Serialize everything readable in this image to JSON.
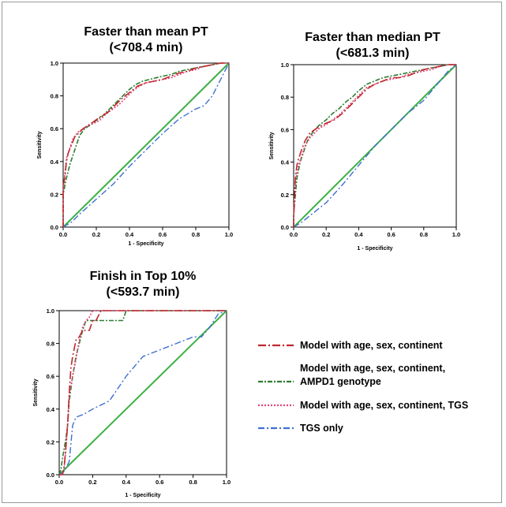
{
  "legend": {
    "entries": [
      {
        "lines": [
          "Model with age, sex, continent"
        ],
        "color": "#c0272d",
        "dash": "10 3 2 3"
      },
      {
        "lines": [
          "Model with age, sex, continent,",
          "AMPD1 genotype"
        ],
        "color": "#2e7d32",
        "dash": "6 2 2 2"
      },
      {
        "lines": [
          "Model with age, sex, continent, TGS"
        ],
        "color": "#e0457b",
        "dash": "2 2"
      },
      {
        "lines": [
          "TGS only"
        ],
        "color": "#3f6fd1",
        "dash": "8 3 2 3"
      }
    ]
  },
  "chart_data": [
    {
      "type": "line",
      "title": [
        "Faster than mean PT",
        "(<708.4 min)"
      ],
      "xlabel": "1 - Specificity",
      "ylabel": "Sensitivity",
      "xlim": [
        0,
        1
      ],
      "ylim": [
        0,
        1
      ],
      "ticks": [
        "0.0",
        "0.2",
        "0.4",
        "0.6",
        "0.8",
        "1.0"
      ],
      "series": [
        {
          "key": "m1",
          "x": [
            0,
            0,
            0.01,
            0.02,
            0.03,
            0.05,
            0.07,
            0.1,
            0.12,
            0.15,
            0.18,
            0.22,
            0.27,
            0.3,
            0.35,
            0.4,
            0.45,
            0.5,
            0.55,
            0.6,
            0.65,
            0.7,
            0.75,
            0.8,
            0.85,
            0.9,
            0.95,
            1.0
          ],
          "y": [
            0,
            0.25,
            0.3,
            0.4,
            0.45,
            0.5,
            0.55,
            0.58,
            0.6,
            0.62,
            0.64,
            0.67,
            0.7,
            0.73,
            0.78,
            0.82,
            0.86,
            0.88,
            0.89,
            0.9,
            0.92,
            0.94,
            0.95,
            0.97,
            0.98,
            0.99,
            1.0,
            1.0
          ]
        },
        {
          "key": "m2",
          "x": [
            0,
            0,
            0.02,
            0.04,
            0.06,
            0.08,
            0.1,
            0.13,
            0.16,
            0.2,
            0.24,
            0.28,
            0.32,
            0.36,
            0.4,
            0.44,
            0.48,
            0.52,
            0.56,
            0.6,
            0.65,
            0.7,
            0.75,
            0.8,
            0.85,
            0.9,
            0.95,
            1.0
          ],
          "y": [
            0,
            0.2,
            0.3,
            0.38,
            0.44,
            0.5,
            0.56,
            0.6,
            0.62,
            0.65,
            0.68,
            0.72,
            0.76,
            0.8,
            0.84,
            0.87,
            0.89,
            0.9,
            0.91,
            0.92,
            0.93,
            0.95,
            0.96,
            0.97,
            0.98,
            0.99,
            1.0,
            1.0
          ]
        },
        {
          "key": "m3",
          "x": [
            0,
            0,
            0.01,
            0.02,
            0.04,
            0.06,
            0.09,
            0.12,
            0.15,
            0.18,
            0.22,
            0.26,
            0.3,
            0.34,
            0.38,
            0.42,
            0.46,
            0.5,
            0.55,
            0.6,
            0.65,
            0.7,
            0.75,
            0.8,
            0.85,
            0.9,
            0.95,
            1.0
          ],
          "y": [
            0,
            0.22,
            0.32,
            0.42,
            0.48,
            0.54,
            0.58,
            0.6,
            0.62,
            0.63,
            0.65,
            0.69,
            0.72,
            0.75,
            0.79,
            0.83,
            0.86,
            0.88,
            0.89,
            0.9,
            0.91,
            0.93,
            0.95,
            0.96,
            0.98,
            0.99,
            1.0,
            1.0
          ]
        },
        {
          "key": "tgs",
          "x": [
            0,
            0.05,
            0.1,
            0.2,
            0.3,
            0.4,
            0.5,
            0.6,
            0.7,
            0.8,
            0.85,
            0.9,
            0.95,
            1.0
          ],
          "y": [
            0,
            0.03,
            0.08,
            0.17,
            0.26,
            0.37,
            0.47,
            0.57,
            0.66,
            0.72,
            0.74,
            0.8,
            0.9,
            1.0
          ]
        },
        {
          "key": "ref",
          "x": [
            0,
            1
          ],
          "y": [
            0,
            1
          ]
        }
      ]
    },
    {
      "type": "line",
      "title": [
        "Faster than median PT",
        "(<681.3 min)"
      ],
      "xlabel": "1 - Specificity",
      "ylabel": "Sensitivity",
      "xlim": [
        0,
        1
      ],
      "ylim": [
        0,
        1
      ],
      "ticks": [
        "0.0",
        "0.2",
        "0.4",
        "0.6",
        "0.8",
        "1.0"
      ],
      "series": [
        {
          "key": "m1",
          "x": [
            0,
            0,
            0.01,
            0.02,
            0.03,
            0.05,
            0.07,
            0.1,
            0.13,
            0.16,
            0.2,
            0.25,
            0.3,
            0.35,
            0.4,
            0.45,
            0.5,
            0.55,
            0.6,
            0.65,
            0.7,
            0.75,
            0.8,
            0.85,
            0.9,
            0.95,
            1.0
          ],
          "y": [
            0,
            0.05,
            0.3,
            0.38,
            0.42,
            0.48,
            0.53,
            0.58,
            0.6,
            0.62,
            0.64,
            0.66,
            0.7,
            0.75,
            0.8,
            0.85,
            0.88,
            0.9,
            0.92,
            0.92,
            0.93,
            0.95,
            0.97,
            0.98,
            0.99,
            1.0,
            1.0
          ]
        },
        {
          "key": "m2",
          "x": [
            0,
            0,
            0.02,
            0.04,
            0.06,
            0.08,
            0.1,
            0.13,
            0.16,
            0.2,
            0.24,
            0.28,
            0.32,
            0.36,
            0.4,
            0.45,
            0.5,
            0.55,
            0.6,
            0.65,
            0.7,
            0.75,
            0.8,
            0.85,
            0.9,
            0.95,
            1.0
          ],
          "y": [
            0,
            0.08,
            0.3,
            0.4,
            0.46,
            0.52,
            0.56,
            0.6,
            0.63,
            0.66,
            0.7,
            0.73,
            0.77,
            0.8,
            0.84,
            0.88,
            0.9,
            0.92,
            0.93,
            0.94,
            0.95,
            0.96,
            0.97,
            0.98,
            0.99,
            1.0,
            1.0
          ]
        },
        {
          "key": "m3",
          "x": [
            0,
            0,
            0.01,
            0.03,
            0.05,
            0.07,
            0.1,
            0.13,
            0.16,
            0.2,
            0.24,
            0.28,
            0.32,
            0.36,
            0.4,
            0.45,
            0.5,
            0.55,
            0.6,
            0.65,
            0.7,
            0.75,
            0.8,
            0.85,
            0.9,
            0.95,
            1.0
          ],
          "y": [
            0,
            0.06,
            0.28,
            0.38,
            0.44,
            0.5,
            0.55,
            0.58,
            0.61,
            0.63,
            0.66,
            0.69,
            0.73,
            0.77,
            0.81,
            0.86,
            0.88,
            0.9,
            0.91,
            0.92,
            0.94,
            0.95,
            0.96,
            0.97,
            0.99,
            1.0,
            1.0
          ]
        },
        {
          "key": "tgs",
          "x": [
            0,
            0.05,
            0.1,
            0.15,
            0.2,
            0.3,
            0.4,
            0.5,
            0.6,
            0.7,
            0.8,
            0.9,
            0.95,
            1.0
          ],
          "y": [
            0,
            0.03,
            0.07,
            0.11,
            0.15,
            0.26,
            0.38,
            0.5,
            0.6,
            0.7,
            0.78,
            0.9,
            0.96,
            1.0
          ]
        },
        {
          "key": "ref",
          "x": [
            0,
            1
          ],
          "y": [
            0,
            1
          ]
        }
      ]
    },
    {
      "type": "line",
      "title": [
        "Finish in Top 10%",
        "(<593.7 min)"
      ],
      "xlabel": "1 - Specificity",
      "ylabel": "Sensitivity",
      "xlim": [
        0,
        1
      ],
      "ylim": [
        0,
        1
      ],
      "ticks": [
        "0.0",
        "0.2",
        "0.4",
        "0.6",
        "0.8",
        "1.0"
      ],
      "series": [
        {
          "key": "m1",
          "x": [
            0,
            0.02,
            0.03,
            0.05,
            0.06,
            0.07,
            0.08,
            0.1,
            0.12,
            0.14,
            0.18,
            0.2,
            0.22,
            0.25,
            0.3,
            0.4,
            0.5,
            0.7,
            1.0
          ],
          "y": [
            0,
            0,
            0.05,
            0.3,
            0.5,
            0.65,
            0.72,
            0.82,
            0.84,
            0.88,
            0.88,
            0.94,
            0.94,
            1.0,
            1.0,
            1.0,
            1.0,
            1.0,
            1.0
          ]
        },
        {
          "key": "m2",
          "x": [
            0,
            0.01,
            0.02,
            0.04,
            0.05,
            0.06,
            0.08,
            0.1,
            0.12,
            0.14,
            0.16,
            0.18,
            0.22,
            0.26,
            0.3,
            0.35,
            0.38,
            0.4,
            0.6,
            1.0
          ],
          "y": [
            0,
            0.03,
            0.1,
            0.22,
            0.3,
            0.45,
            0.6,
            0.72,
            0.8,
            0.88,
            0.94,
            0.94,
            0.94,
            0.94,
            0.94,
            0.94,
            0.94,
            1.0,
            1.0,
            1.0
          ]
        },
        {
          "key": "m3",
          "x": [
            0,
            0.02,
            0.03,
            0.04,
            0.05,
            0.06,
            0.08,
            0.1,
            0.12,
            0.14,
            0.16,
            0.18,
            0.2,
            0.22,
            0.26,
            0.3,
            0.4,
            0.6,
            1.0
          ],
          "y": [
            0,
            0,
            0.05,
            0.15,
            0.3,
            0.48,
            0.6,
            0.7,
            0.82,
            0.9,
            0.94,
            0.96,
            1.0,
            1.0,
            1.0,
            1.0,
            1.0,
            1.0,
            1.0
          ]
        },
        {
          "key": "tgs",
          "x": [
            0,
            0.03,
            0.06,
            0.08,
            0.1,
            0.15,
            0.2,
            0.3,
            0.4,
            0.5,
            0.6,
            0.7,
            0.8,
            0.85,
            0.9,
            0.95,
            1.0
          ],
          "y": [
            0,
            0.02,
            0.08,
            0.3,
            0.35,
            0.37,
            0.4,
            0.45,
            0.6,
            0.72,
            0.76,
            0.8,
            0.84,
            0.84,
            0.9,
            0.98,
            1.0
          ]
        },
        {
          "key": "ref",
          "x": [
            0,
            1
          ],
          "y": [
            0,
            1
          ]
        }
      ]
    }
  ]
}
